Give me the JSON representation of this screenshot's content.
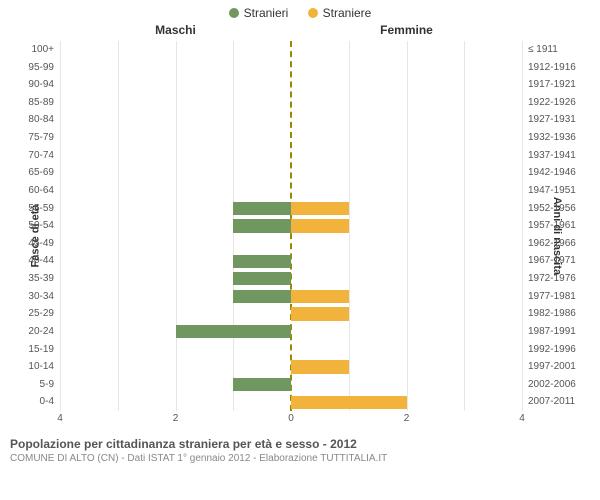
{
  "legend": {
    "male": {
      "label": "Stranieri",
      "color": "#70975f"
    },
    "female": {
      "label": "Straniere",
      "color": "#f1b33c"
    }
  },
  "panel_titles": {
    "left": "Maschi",
    "right": "Femmine"
  },
  "axis_titles": {
    "left": "Fasce di età",
    "right": "Anni di nascita"
  },
  "chart": {
    "type": "population-pyramid",
    "x_max": 4,
    "x_ticks": [
      4,
      2,
      0,
      2,
      4
    ],
    "center_line_color": "#998800",
    "grid_color": "#e6e6e6",
    "background_color": "#ffffff",
    "bar_height_ratio": 0.75,
    "rows": [
      {
        "age": "100+",
        "birth": "≤ 1911",
        "m": 0,
        "f": 0
      },
      {
        "age": "95-99",
        "birth": "1912-1916",
        "m": 0,
        "f": 0
      },
      {
        "age": "90-94",
        "birth": "1917-1921",
        "m": 0,
        "f": 0
      },
      {
        "age": "85-89",
        "birth": "1922-1926",
        "m": 0,
        "f": 0
      },
      {
        "age": "80-84",
        "birth": "1927-1931",
        "m": 0,
        "f": 0
      },
      {
        "age": "75-79",
        "birth": "1932-1936",
        "m": 0,
        "f": 0
      },
      {
        "age": "70-74",
        "birth": "1937-1941",
        "m": 0,
        "f": 0
      },
      {
        "age": "65-69",
        "birth": "1942-1946",
        "m": 0,
        "f": 0
      },
      {
        "age": "60-64",
        "birth": "1947-1951",
        "m": 0,
        "f": 0
      },
      {
        "age": "55-59",
        "birth": "1952-1956",
        "m": 1,
        "f": 1
      },
      {
        "age": "50-54",
        "birth": "1957-1961",
        "m": 1,
        "f": 1
      },
      {
        "age": "45-49",
        "birth": "1962-1966",
        "m": 0,
        "f": 0
      },
      {
        "age": "40-44",
        "birth": "1967-1971",
        "m": 1,
        "f": 0
      },
      {
        "age": "35-39",
        "birth": "1972-1976",
        "m": 1,
        "f": 0
      },
      {
        "age": "30-34",
        "birth": "1977-1981",
        "m": 1,
        "f": 1
      },
      {
        "age": "25-29",
        "birth": "1982-1986",
        "m": 0,
        "f": 1
      },
      {
        "age": "20-24",
        "birth": "1987-1991",
        "m": 2,
        "f": 0
      },
      {
        "age": "15-19",
        "birth": "1992-1996",
        "m": 0,
        "f": 0
      },
      {
        "age": "10-14",
        "birth": "1997-2001",
        "m": 0,
        "f": 1
      },
      {
        "age": "5-9",
        "birth": "2002-2006",
        "m": 1,
        "f": 0
      },
      {
        "age": "0-4",
        "birth": "2007-2011",
        "m": 0,
        "f": 2
      }
    ]
  },
  "footer": {
    "title": "Popolazione per cittadinanza straniera per età e sesso - 2012",
    "subtitle": "COMUNE DI ALTO (CN) - Dati ISTAT 1° gennaio 2012 - Elaborazione TUTTITALIA.IT"
  }
}
